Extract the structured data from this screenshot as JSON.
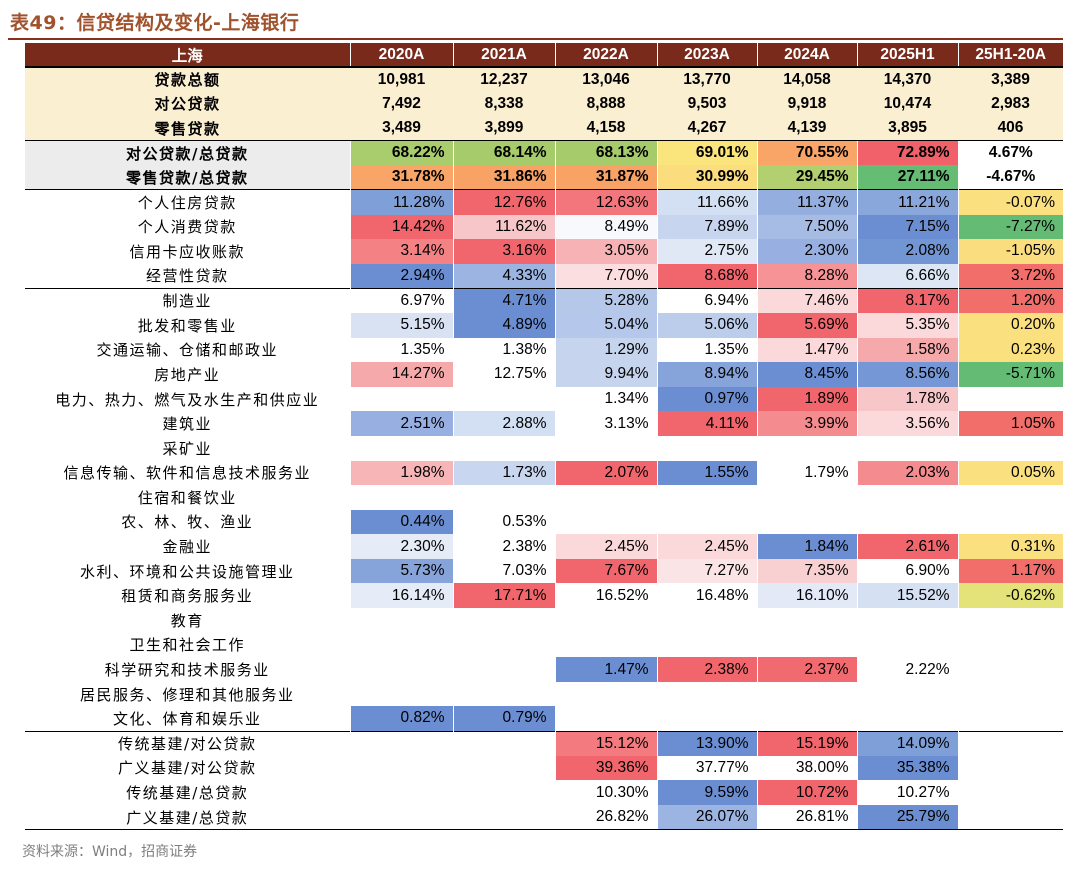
{
  "title": "表49：信贷结构及变化-上海银行",
  "source": "资料来源：Wind，招商证券",
  "columns": [
    "上海",
    "2020A",
    "2021A",
    "2022A",
    "2023A",
    "2024A",
    "2025H1",
    "25H1-20A"
  ],
  "colors": {
    "header": "#7a2a1b",
    "summary": "#fbefd2",
    "title": "#a0522d"
  },
  "rows": [
    {
      "cls": "s1 top",
      "cells": [
        {
          "t": "贷款总额"
        },
        {
          "t": "10,981"
        },
        {
          "t": "12,237"
        },
        {
          "t": "13,046"
        },
        {
          "t": "13,770"
        },
        {
          "t": "14,058"
        },
        {
          "t": "14,370"
        },
        {
          "t": "3,389"
        }
      ]
    },
    {
      "cls": "s1",
      "cells": [
        {
          "t": "对公贷款"
        },
        {
          "t": "7,492"
        },
        {
          "t": "8,338"
        },
        {
          "t": "8,888"
        },
        {
          "t": "9,503"
        },
        {
          "t": "9,918"
        },
        {
          "t": "10,474"
        },
        {
          "t": "2,983"
        }
      ]
    },
    {
      "cls": "s1",
      "cells": [
        {
          "t": "零售贷款"
        },
        {
          "t": "3,489"
        },
        {
          "t": "3,899"
        },
        {
          "t": "4,158"
        },
        {
          "t": "4,267"
        },
        {
          "t": "4,139"
        },
        {
          "t": "3,895"
        },
        {
          "t": "406"
        }
      ]
    },
    {
      "cls": "s2 sep",
      "cells": [
        {
          "t": "对公贷款/总贷款"
        },
        {
          "t": "68.22%",
          "bg": "#a9cd6d"
        },
        {
          "t": "68.14%",
          "bg": "#a6cb6b"
        },
        {
          "t": "68.13%",
          "bg": "#a6cb6b"
        },
        {
          "t": "69.01%",
          "bg": "#fae47c"
        },
        {
          "t": "70.55%",
          "bg": "#f8a567"
        },
        {
          "t": "72.89%",
          "bg": "#f1616a"
        },
        {
          "t": "4.67%"
        }
      ]
    },
    {
      "cls": "s2",
      "cells": [
        {
          "t": "零售贷款/总贷款"
        },
        {
          "t": "31.78%",
          "bg": "#f8a567"
        },
        {
          "t": "31.86%",
          "bg": "#f8a266"
        },
        {
          "t": "31.87%",
          "bg": "#f8a266"
        },
        {
          "t": "30.99%",
          "bg": "#fbdd7e"
        },
        {
          "t": "29.45%",
          "bg": "#b2d06f"
        },
        {
          "t": "27.11%",
          "bg": "#65bd74"
        },
        {
          "t": "-4.67%"
        }
      ]
    },
    {
      "cls": "s3 sep",
      "cells": [
        {
          "t": "个人住房贷款"
        },
        {
          "t": "11.28%",
          "bg": "#7f9fd8"
        },
        {
          "t": "12.76%",
          "bg": "#f0666c"
        },
        {
          "t": "12.63%",
          "bg": "#f2767b"
        },
        {
          "t": "11.66%",
          "bg": "#d3dff2"
        },
        {
          "t": "11.37%",
          "bg": "#94aee0"
        },
        {
          "t": "11.21%",
          "bg": "#8aa7dc"
        },
        {
          "t": "-0.07%",
          "bg": "#fbe07f"
        }
      ]
    },
    {
      "cls": "s3",
      "cells": [
        {
          "t": "个人消费贷款"
        },
        {
          "t": "14.42%",
          "bg": "#f0666c"
        },
        {
          "t": "11.62%",
          "bg": "#f7c6c8"
        },
        {
          "t": "8.49%",
          "bg": "#f7f9fd"
        },
        {
          "t": "7.89%",
          "bg": "#c7d5ee"
        },
        {
          "t": "7.50%",
          "bg": "#a6bce5"
        },
        {
          "t": "7.15%",
          "bg": "#6b8ed3"
        },
        {
          "t": "-7.27%",
          "bg": "#64bc74"
        }
      ]
    },
    {
      "cls": "s3",
      "cells": [
        {
          "t": "信用卡应收账款"
        },
        {
          "t": "3.14%",
          "bg": "#f48184"
        },
        {
          "t": "3.16%",
          "bg": "#f0666c"
        },
        {
          "t": "3.05%",
          "bg": "#f6b2b4"
        },
        {
          "t": "2.75%",
          "bg": "#e0e8f6"
        },
        {
          "t": "2.30%",
          "bg": "#98b0e1"
        },
        {
          "t": "2.08%",
          "bg": "#7295d4"
        },
        {
          "t": "-1.05%",
          "bg": "#fadd7e"
        }
      ]
    },
    {
      "cls": "s3",
      "cells": [
        {
          "t": "经营性贷款"
        },
        {
          "t": "2.94%",
          "bg": "#6b8ed3"
        },
        {
          "t": "4.33%",
          "bg": "#9cb4e2"
        },
        {
          "t": "7.70%",
          "bg": "#fbdfe0"
        },
        {
          "t": "8.68%",
          "bg": "#f0666c"
        },
        {
          "t": "8.28%",
          "bg": "#f59396"
        },
        {
          "t": "6.66%",
          "bg": "#dde6f5"
        },
        {
          "t": "3.72%",
          "bg": "#f26e6a"
        }
      ]
    },
    {
      "cls": "s3 sep",
      "cells": [
        {
          "t": "制造业"
        },
        {
          "t": "6.97%"
        },
        {
          "t": "4.71%",
          "bg": "#6b8ed3"
        },
        {
          "t": "5.28%",
          "bg": "#b6c8ea"
        },
        {
          "t": "6.94%"
        },
        {
          "t": "7.46%",
          "bg": "#fbd9da"
        },
        {
          "t": "8.17%",
          "bg": "#f0666c"
        },
        {
          "t": "1.20%",
          "bg": "#f26e6a"
        }
      ]
    },
    {
      "cls": "s3",
      "cells": [
        {
          "t": "批发和零售业"
        },
        {
          "t": "5.15%",
          "bg": "#d8e2f3"
        },
        {
          "t": "4.89%",
          "bg": "#6b8ed3"
        },
        {
          "t": "5.04%",
          "bg": "#b5c7ea"
        },
        {
          "t": "5.06%",
          "bg": "#bccdeb"
        },
        {
          "t": "5.69%",
          "bg": "#f0666c"
        },
        {
          "t": "5.35%",
          "bg": "#fbd9da"
        },
        {
          "t": "0.20%",
          "bg": "#fbe07f"
        }
      ]
    },
    {
      "cls": "s3",
      "cells": [
        {
          "t": "交通运输、仓储和邮政业"
        },
        {
          "t": "1.35%"
        },
        {
          "t": "1.38%"
        },
        {
          "t": "1.29%",
          "bg": "#c6d4ee"
        },
        {
          "t": "1.35%"
        },
        {
          "t": "1.47%",
          "bg": "#fbd9da"
        },
        {
          "t": "1.58%",
          "bg": "#f6a9ab"
        },
        {
          "t": "0.23%",
          "bg": "#fbe07f"
        }
      ]
    },
    {
      "cls": "s3",
      "cells": [
        {
          "t": "房地产业"
        },
        {
          "t": "14.27%",
          "bg": "#f6a9ab"
        },
        {
          "t": "12.75%"
        },
        {
          "t": "9.94%",
          "bg": "#c6d4ee"
        },
        {
          "t": "8.94%",
          "bg": "#86a3da"
        },
        {
          "t": "8.45%",
          "bg": "#6b8ed3"
        },
        {
          "t": "8.56%",
          "bg": "#7697d6"
        },
        {
          "t": "-5.71%",
          "bg": "#64bc74"
        }
      ]
    },
    {
      "cls": "s3",
      "cells": [
        {
          "t": "电力、热力、燃气及水生产和供应业"
        },
        {
          "t": ""
        },
        {
          "t": ""
        },
        {
          "t": "1.34%"
        },
        {
          "t": "0.97%",
          "bg": "#6b8ed3"
        },
        {
          "t": "1.89%",
          "bg": "#f0666c"
        },
        {
          "t": "1.78%",
          "bg": "#f7c6c8"
        },
        {
          "t": ""
        }
      ]
    },
    {
      "cls": "s3",
      "cells": [
        {
          "t": "建筑业"
        },
        {
          "t": "2.51%",
          "bg": "#98b0e1"
        },
        {
          "t": "2.88%",
          "bg": "#d3dff2"
        },
        {
          "t": "3.13%"
        },
        {
          "t": "4.11%",
          "bg": "#f0666c"
        },
        {
          "t": "3.99%",
          "bg": "#f48b8e"
        },
        {
          "t": "3.56%",
          "bg": "#fbd9da"
        },
        {
          "t": "1.05%",
          "bg": "#f26e6a"
        }
      ]
    },
    {
      "cls": "s3",
      "cells": [
        {
          "t": "采矿业"
        },
        {
          "t": ""
        },
        {
          "t": ""
        },
        {
          "t": ""
        },
        {
          "t": ""
        },
        {
          "t": ""
        },
        {
          "t": ""
        },
        {
          "t": ""
        }
      ]
    },
    {
      "cls": "s3",
      "cells": [
        {
          "t": "信息传输、软件和信息技术服务业"
        },
        {
          "t": "1.98%",
          "bg": "#f7b5b7"
        },
        {
          "t": "1.73%",
          "bg": "#c9d6ef"
        },
        {
          "t": "2.07%",
          "bg": "#f0666c"
        },
        {
          "t": "1.55%",
          "bg": "#6b8ed3"
        },
        {
          "t": "1.79%"
        },
        {
          "t": "2.03%",
          "bg": "#f48b8e"
        },
        {
          "t": "0.05%",
          "bg": "#fbe07f"
        }
      ]
    },
    {
      "cls": "s3",
      "cells": [
        {
          "t": "住宿和餐饮业"
        },
        {
          "t": ""
        },
        {
          "t": ""
        },
        {
          "t": ""
        },
        {
          "t": ""
        },
        {
          "t": ""
        },
        {
          "t": ""
        },
        {
          "t": ""
        }
      ]
    },
    {
      "cls": "s3",
      "cells": [
        {
          "t": "农、林、牧、渔业"
        },
        {
          "t": "0.44%",
          "bg": "#6b8ed3"
        },
        {
          "t": "0.53%"
        },
        {
          "t": ""
        },
        {
          "t": ""
        },
        {
          "t": ""
        },
        {
          "t": ""
        },
        {
          "t": ""
        }
      ]
    },
    {
      "cls": "s3",
      "cells": [
        {
          "t": "金融业"
        },
        {
          "t": "2.30%",
          "bg": "#e6ecf7"
        },
        {
          "t": "2.38%"
        },
        {
          "t": "2.45%",
          "bg": "#fbd9da"
        },
        {
          "t": "2.45%",
          "bg": "#fbd9da"
        },
        {
          "t": "1.84%",
          "bg": "#6b8ed3"
        },
        {
          "t": "2.61%",
          "bg": "#f0666c"
        },
        {
          "t": "0.31%",
          "bg": "#fbe07f"
        }
      ]
    },
    {
      "cls": "s3",
      "cells": [
        {
          "t": "水利、环境和公共设施管理业"
        },
        {
          "t": "5.73%",
          "bg": "#86a3da"
        },
        {
          "t": "7.03%"
        },
        {
          "t": "7.67%",
          "bg": "#f0666c"
        },
        {
          "t": "7.27%",
          "bg": "#fbe4e5"
        },
        {
          "t": "7.35%",
          "bg": "#f8d0d2"
        },
        {
          "t": "6.90%"
        },
        {
          "t": "1.17%",
          "bg": "#f26e6a"
        }
      ]
    },
    {
      "cls": "s3",
      "cells": [
        {
          "t": "租赁和商务服务业"
        },
        {
          "t": "16.14%",
          "bg": "#e6ecf7"
        },
        {
          "t": "17.71%",
          "bg": "#f0666c"
        },
        {
          "t": "16.52%"
        },
        {
          "t": "16.48%"
        },
        {
          "t": "16.10%",
          "bg": "#e3e9f6"
        },
        {
          "t": "15.52%",
          "bg": "#d6e0f3"
        },
        {
          "t": "-0.62%",
          "bg": "#e4e37a"
        }
      ]
    },
    {
      "cls": "s3",
      "cells": [
        {
          "t": "教育"
        },
        {
          "t": ""
        },
        {
          "t": ""
        },
        {
          "t": ""
        },
        {
          "t": ""
        },
        {
          "t": ""
        },
        {
          "t": ""
        },
        {
          "t": ""
        }
      ]
    },
    {
      "cls": "s3",
      "cells": [
        {
          "t": "卫生和社会工作"
        },
        {
          "t": ""
        },
        {
          "t": ""
        },
        {
          "t": ""
        },
        {
          "t": ""
        },
        {
          "t": ""
        },
        {
          "t": ""
        },
        {
          "t": ""
        }
      ]
    },
    {
      "cls": "s3",
      "cells": [
        {
          "t": "科学研究和技术服务业"
        },
        {
          "t": ""
        },
        {
          "t": ""
        },
        {
          "t": "1.47%",
          "bg": "#6b8ed3"
        },
        {
          "t": "2.38%",
          "bg": "#f0666c"
        },
        {
          "t": "2.37%",
          "bg": "#f16a6f"
        },
        {
          "t": "2.22%"
        },
        {
          "t": ""
        }
      ]
    },
    {
      "cls": "s3",
      "cells": [
        {
          "t": "居民服务、修理和其他服务业"
        },
        {
          "t": ""
        },
        {
          "t": ""
        },
        {
          "t": ""
        },
        {
          "t": ""
        },
        {
          "t": ""
        },
        {
          "t": ""
        },
        {
          "t": ""
        }
      ]
    },
    {
      "cls": "s3",
      "cells": [
        {
          "t": "文化、体育和娱乐业"
        },
        {
          "t": "0.82%",
          "bg": "#6b8ed3"
        },
        {
          "t": "0.79%",
          "bg": "#6b8ed3"
        },
        {
          "t": ""
        },
        {
          "t": ""
        },
        {
          "t": ""
        },
        {
          "t": ""
        },
        {
          "t": ""
        }
      ]
    },
    {
      "cls": "s3 sep",
      "cells": [
        {
          "t": "传统基建/对公贷款"
        },
        {
          "t": ""
        },
        {
          "t": ""
        },
        {
          "t": "15.12%",
          "bg": "#f37b7f"
        },
        {
          "t": "13.90%",
          "bg": "#6b8ed3"
        },
        {
          "t": "15.19%",
          "bg": "#f0666c"
        },
        {
          "t": "14.09%",
          "bg": "#7f9fd8"
        },
        {
          "t": ""
        }
      ]
    },
    {
      "cls": "s3",
      "cells": [
        {
          "t": "广义基建/对公贷款"
        },
        {
          "t": ""
        },
        {
          "t": ""
        },
        {
          "t": "39.36%",
          "bg": "#f0666c"
        },
        {
          "t": "37.77%"
        },
        {
          "t": "38.00%"
        },
        {
          "t": "35.38%",
          "bg": "#6b8ed3"
        },
        {
          "t": ""
        }
      ]
    },
    {
      "cls": "s3",
      "cells": [
        {
          "t": "传统基建/总贷款"
        },
        {
          "t": ""
        },
        {
          "t": ""
        },
        {
          "t": "10.30%"
        },
        {
          "t": "9.59%",
          "bg": "#6b8ed3"
        },
        {
          "t": "10.72%",
          "bg": "#f0666c"
        },
        {
          "t": "10.27%"
        },
        {
          "t": ""
        }
      ]
    },
    {
      "cls": "s3",
      "cells": [
        {
          "t": "广义基建/总贷款"
        },
        {
          "t": ""
        },
        {
          "t": ""
        },
        {
          "t": "26.82%"
        },
        {
          "t": "26.07%",
          "bg": "#9cb4e2"
        },
        {
          "t": "26.81%"
        },
        {
          "t": "25.79%",
          "bg": "#6b8ed3"
        },
        {
          "t": ""
        }
      ]
    }
  ]
}
